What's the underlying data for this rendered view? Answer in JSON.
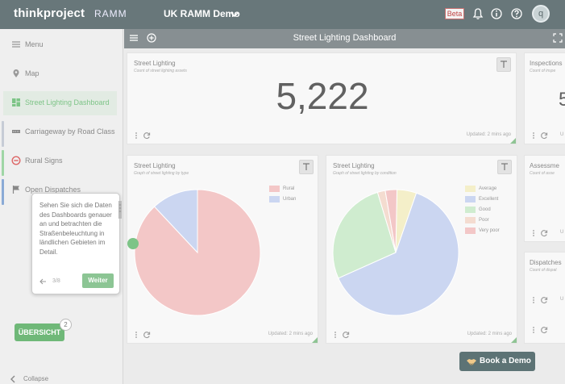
{
  "topbar": {
    "logo": "thinkproject",
    "logo_sub": "RAMM",
    "project": "UK RAMM Demo",
    "beta": "Beta",
    "avatar_initial": "q"
  },
  "sidebar": {
    "items": [
      {
        "label": "Menu",
        "icon": "hamburger-icon"
      },
      {
        "label": "Map",
        "icon": "map-pin-icon"
      },
      {
        "label": "Street Lighting Dashboard",
        "icon": "dashboard-icon",
        "active": true
      },
      {
        "label": "Carriageway by Road Class",
        "icon": "road-icon",
        "bar_color": "#c6ccd6"
      },
      {
        "label": "Rural Signs",
        "icon": "no-entry-icon",
        "bar_color": "#9fd6a5"
      },
      {
        "label": "Open Dispatches",
        "icon": "flag-icon",
        "bar_color": "#8aaad6"
      }
    ],
    "collapse": "Collapse",
    "overview": "ÜBERSICHT",
    "overview_count": "2"
  },
  "main": {
    "title": "Street Lighting Dashboard"
  },
  "cards": {
    "count": {
      "title": "Street Lighting",
      "subtitle": "Count of street lighting assets",
      "value": "5,222",
      "updated": "Updated: 2 mins ago"
    },
    "inspections": {
      "title": "Inspections",
      "subtitle": "Count of inspe",
      "value": "5",
      "updated": "U"
    },
    "by_type": {
      "title": "Street Lighting",
      "subtitle": "Graph of street lighting by type",
      "updated": "Updated: 2 mins ago"
    },
    "by_condition": {
      "title": "Street Lighting",
      "subtitle": "Graph of street lighting by condition",
      "updated": "Updated: 2 mins ago"
    },
    "assessments": {
      "title": "Assessme",
      "subtitle": "Count of asse",
      "updated": "U"
    },
    "dispatches": {
      "title": "Dispatches",
      "subtitle": "Count of dispat",
      "updated": "U"
    }
  },
  "chart_data": [
    {
      "type": "pie",
      "categories": [
        "Rural",
        "Urban"
      ],
      "values": [
        88,
        12
      ],
      "colors": [
        "#f3c7c7",
        "#cbd6f1"
      ],
      "legend": "top-right"
    },
    {
      "type": "pie",
      "categories": [
        "Average",
        "Excellent",
        "Good",
        "Poor",
        "Very poor"
      ],
      "values": [
        5,
        63,
        27,
        2,
        3
      ],
      "colors": [
        "#f4efc9",
        "#cbd6f1",
        "#cfeccf",
        "#f4dcd0",
        "#f3c7c7"
      ],
      "legend": "top-right"
    }
  ],
  "tooltip": {
    "text": "Sehen Sie sich die Daten des Dashboards genauer an und betrachten die Straßenbeleuchtung in ländlichen Gebieten im Detail.",
    "page": "3/8",
    "next": "Weiter"
  },
  "demo_button": "Book a Demo",
  "colors": {
    "accent": "#7dc487",
    "topbar": "#68777a",
    "mainbar": "#878f92"
  }
}
